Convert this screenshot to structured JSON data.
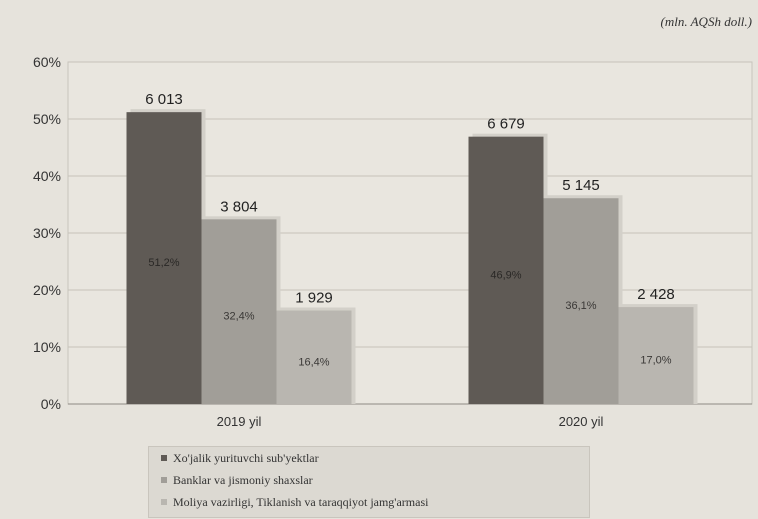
{
  "chart_data": {
    "type": "bar",
    "unit_note": "(mln. AQSh doll.)",
    "ylim": [
      0,
      60
    ],
    "y_ticks": [
      "0%",
      "10%",
      "20%",
      "30%",
      "40%",
      "50%",
      "60%"
    ],
    "categories": [
      "2019 yil",
      "2020 yil"
    ],
    "grid": true,
    "legend_position": "bottom",
    "series": [
      {
        "name": "Xo'jalik yurituvchi sub'yektlar",
        "color": "#5f5a55",
        "percents": [
          51.2,
          46.9
        ],
        "percent_labels": [
          "51,2%",
          "46,9%"
        ],
        "amount_labels": [
          "6 013",
          "6 679"
        ]
      },
      {
        "name": "Banklar va jismoniy shaxslar",
        "color": "#a19e98",
        "percents": [
          32.4,
          36.1
        ],
        "percent_labels": [
          "32,4%",
          "36,1%"
        ],
        "amount_labels": [
          "3 804",
          "5 145"
        ]
      },
      {
        "name": "Moliya vazirligi, Tiklanish va taraqqiyot jamg'armasi",
        "color": "#b9b6b0",
        "percents": [
          16.4,
          17.0
        ],
        "percent_labels": [
          "16,4%",
          "17,0%"
        ],
        "amount_labels": [
          "1 929",
          "2 428"
        ]
      }
    ]
  }
}
